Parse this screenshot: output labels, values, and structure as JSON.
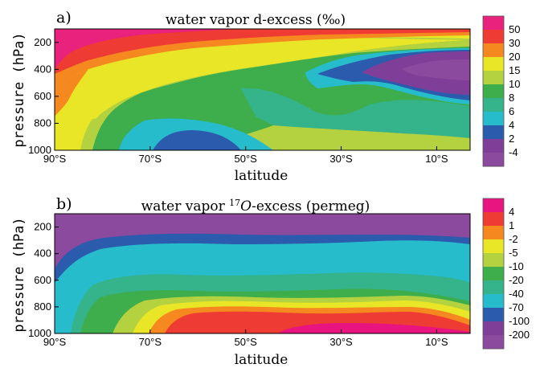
{
  "chart_data": [
    {
      "type": "heatmap",
      "panel": "a)",
      "title_pre": "water vapor d-excess (",
      "title_unit": "‰",
      "title_post": ")",
      "xlabel": "latitude",
      "ylabel": "pressure (hPa)",
      "x_ticks": [
        "90°S",
        "70°S",
        "50°S",
        "30°S",
        "10°S"
      ],
      "x_tick_values": [
        -90,
        -70,
        -50,
        -30,
        -10
      ],
      "xlim": [
        -90,
        -3
      ],
      "y_ticks": [
        "200",
        "400",
        "600",
        "800",
        "1000"
      ],
      "y_tick_values": [
        200,
        400,
        600,
        800,
        1000
      ],
      "ylim": [
        1000,
        100
      ],
      "levels": [
        "50",
        "30",
        "20",
        "15",
        "10",
        "8",
        "6",
        "4",
        "2",
        "-4"
      ],
      "colors": [
        "#e8227d",
        "#ee3b33",
        "#f5881f",
        "#e9e628",
        "#b4d13f",
        "#3ead4b",
        "#35b38a",
        "#26bccb",
        "#2b5bad",
        "#7f3f98",
        "#8b4a9e"
      ],
      "grid": false,
      "legend": "colorbar-right"
    },
    {
      "type": "heatmap",
      "panel": "b)",
      "title_pre": "water vapor ",
      "title_sup": "17",
      "title_it": "O",
      "title_post": "-excess (permeg)",
      "xlabel": "latitude",
      "ylabel": "pressure (hPa)",
      "x_ticks": [
        "90°S",
        "70°S",
        "50°S",
        "30°S",
        "10°S"
      ],
      "x_tick_values": [
        -90,
        -70,
        -50,
        -30,
        -10
      ],
      "xlim": [
        -90,
        -3
      ],
      "y_ticks": [
        "200",
        "400",
        "600",
        "800",
        "1000"
      ],
      "y_tick_values": [
        200,
        400,
        600,
        800,
        1000
      ],
      "ylim": [
        1000,
        100
      ],
      "levels": [
        "4",
        "1",
        "-2",
        "-5",
        "-10",
        "-20",
        "-40",
        "-70",
        "-100",
        "-200"
      ],
      "colors": [
        "#e8147f",
        "#ee3b33",
        "#f5881f",
        "#e9e628",
        "#b4d13f",
        "#3ead4b",
        "#35b38a",
        "#26bccb",
        "#2b5bad",
        "#7f3f98",
        "#8b4a9e"
      ],
      "grid": false,
      "legend": "colorbar-right"
    }
  ]
}
